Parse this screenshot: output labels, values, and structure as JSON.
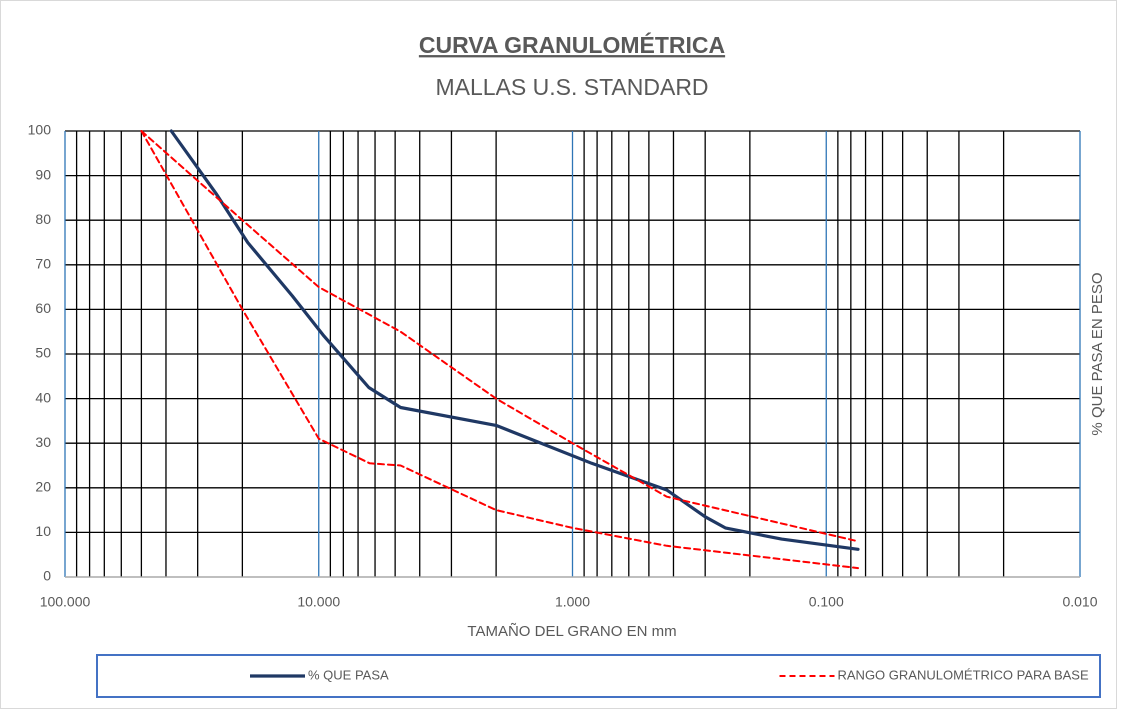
{
  "chart_data": {
    "type": "line",
    "title": "CURVA GRANULOMÉTRICA",
    "subtitle": "MALLAS U.S. STANDARD",
    "x_label": "TAMAÑO DEL GRANO EN mm",
    "y_label": "% QUE PASA EN PESO",
    "x_log": true,
    "xlim": [
      100,
      0.01
    ],
    "xticks": [
      {
        "value": 100,
        "label": "100.000"
      },
      {
        "value": 10,
        "label": "10.000"
      },
      {
        "value": 1,
        "label": "1.000"
      },
      {
        "value": 0.1,
        "label": "0.100"
      },
      {
        "value": 0.01,
        "label": "0.010"
      }
    ],
    "xminor_ticks": [
      90,
      80,
      70,
      60,
      50,
      40,
      30,
      20,
      9,
      8,
      7,
      6,
      5,
      4,
      3,
      2,
      0.9,
      0.8,
      0.7,
      0.6,
      0.5,
      0.4,
      0.3,
      0.2,
      0.09,
      0.08,
      0.07,
      0.06,
      0.05,
      0.04,
      0.03,
      0.02
    ],
    "ylim": [
      0,
      100
    ],
    "yticks": [
      0,
      10,
      20,
      30,
      40,
      50,
      60,
      70,
      80,
      90,
      100
    ],
    "grid": true,
    "series": [
      {
        "name": "% QUE PASA",
        "color": "#1f3864",
        "dash": false,
        "x": [
          38.1,
          25.4,
          19.05,
          12.7,
          9.525,
          6.35,
          4.76,
          2.0,
          0.84,
          0.425,
          0.3,
          0.25,
          0.15,
          0.075
        ],
        "values": [
          100,
          86,
          75,
          63,
          54,
          42.5,
          38,
          34,
          25.5,
          19.5,
          13.5,
          11,
          8.5,
          6.2
        ]
      },
      {
        "name": "RANGO GRANULOMÉTRICO PARA BASE",
        "color": "#ff0000",
        "dash": true,
        "x": [
          50,
          20,
          10,
          4.76,
          2.0,
          1.0,
          0.425,
          0.075
        ],
        "values": [
          100,
          80,
          65,
          55,
          40,
          30,
          18,
          8
        ]
      },
      {
        "color": "#ff0000",
        "dash": true,
        "x": [
          50,
          20,
          10,
          6.3,
          4.76,
          2.0,
          1.0,
          0.425,
          0.075
        ],
        "values": [
          100,
          60,
          31,
          25.5,
          25,
          15,
          11,
          7,
          2
        ]
      }
    ]
  }
}
